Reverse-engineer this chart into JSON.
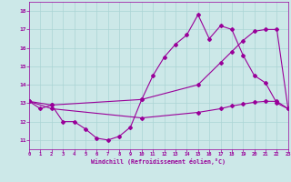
{
  "xlabel": "Windchill (Refroidissement éolien,°C)",
  "bg_color": "#cce8e8",
  "line_color": "#990099",
  "grid_color": "#aad4d4",
  "xlim": [
    0,
    23
  ],
  "ylim": [
    10.5,
    18.5
  ],
  "yticks": [
    11,
    12,
    13,
    14,
    15,
    16,
    17,
    18
  ],
  "xticks": [
    0,
    1,
    2,
    3,
    4,
    5,
    6,
    7,
    8,
    9,
    10,
    11,
    12,
    13,
    14,
    15,
    16,
    17,
    18,
    19,
    20,
    21,
    22,
    23
  ],
  "line1_x": [
    0,
    1,
    2,
    3,
    4,
    5,
    6,
    7,
    8,
    9,
    10,
    11,
    12,
    13,
    14,
    15,
    16,
    17,
    18,
    19,
    20,
    21,
    22,
    23
  ],
  "line1_y": [
    13.1,
    12.7,
    12.9,
    12.0,
    12.0,
    11.6,
    11.1,
    11.0,
    11.2,
    11.7,
    13.2,
    14.5,
    15.5,
    16.2,
    16.7,
    17.8,
    16.5,
    17.2,
    17.0,
    15.6,
    14.5,
    14.1,
    13.0,
    12.7
  ],
  "line2_x": [
    0,
    2,
    10,
    15,
    17,
    18,
    19,
    20,
    21,
    22,
    23
  ],
  "line2_y": [
    13.1,
    12.9,
    13.2,
    14.0,
    15.2,
    15.8,
    16.4,
    16.9,
    17.0,
    17.0,
    12.7
  ],
  "line3_x": [
    0,
    2,
    10,
    15,
    17,
    18,
    19,
    20,
    21,
    22,
    23
  ],
  "line3_y": [
    13.1,
    12.7,
    12.2,
    12.5,
    12.7,
    12.85,
    12.95,
    13.05,
    13.1,
    13.1,
    12.7
  ]
}
